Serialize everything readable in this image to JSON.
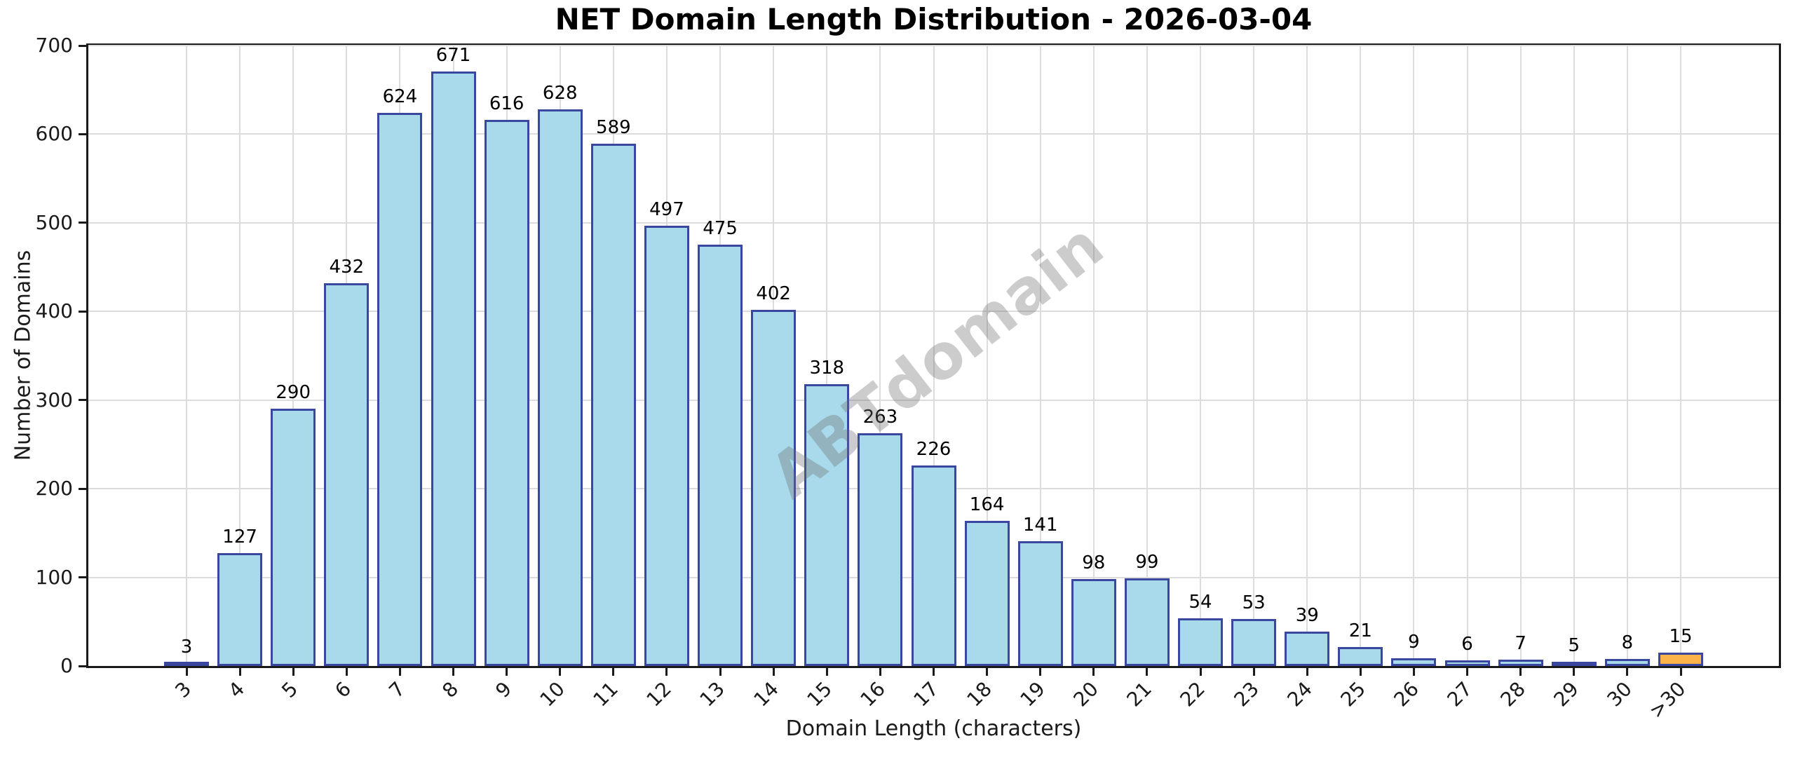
{
  "chart_data": {
    "type": "bar",
    "title": "NET Domain Length Distribution - 2026-03-04",
    "xlabel": "Domain Length (characters)",
    "ylabel": "Number of Domains",
    "categories": [
      "3",
      "4",
      "5",
      "6",
      "7",
      "8",
      "9",
      "10",
      "11",
      "12",
      "13",
      "14",
      "15",
      "16",
      "17",
      "18",
      "19",
      "20",
      "21",
      "22",
      "23",
      "24",
      "25",
      "26",
      "27",
      "28",
      "29",
      "30",
      ">30"
    ],
    "values": [
      3,
      127,
      290,
      432,
      624,
      671,
      616,
      628,
      589,
      497,
      475,
      402,
      318,
      263,
      226,
      164,
      141,
      98,
      99,
      54,
      53,
      39,
      21,
      9,
      6,
      7,
      5,
      8,
      15
    ],
    "ylim": [
      0,
      700
    ],
    "yticks": [
      0,
      100,
      200,
      300,
      400,
      500,
      600,
      700
    ],
    "grid": true,
    "legend": null,
    "bar_color": "#A8DAEC",
    "bar_edge_color": "#39489E",
    "highlight_category": ">30",
    "highlight_color": "#FCB34A",
    "watermark": "ABTdomain"
  }
}
